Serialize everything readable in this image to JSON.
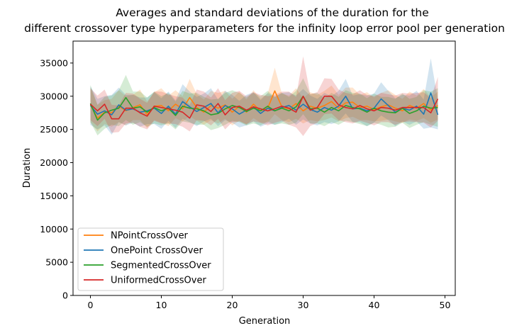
{
  "chart_data": {
    "type": "line",
    "title_line1": "Averages and standard deviations of the duration for the",
    "title_line2": "different crossover type hyperparameters for the infinity loop error pool per generation",
    "xlabel": "Generation",
    "ylabel": "Duration",
    "xlim": [
      -2.45,
      51.45
    ],
    "ylim": [
      0,
      38300
    ],
    "xticks": [
      0,
      10,
      20,
      30,
      40,
      50
    ],
    "yticks": [
      0,
      5000,
      10000,
      15000,
      20000,
      25000,
      30000,
      35000
    ],
    "grid": false,
    "legend_position": "lower-left",
    "x": [
      0,
      1,
      2,
      3,
      4,
      5,
      6,
      7,
      8,
      9,
      10,
      11,
      12,
      13,
      14,
      15,
      16,
      17,
      18,
      19,
      20,
      21,
      22,
      23,
      24,
      25,
      26,
      27,
      28,
      29,
      30,
      31,
      32,
      33,
      34,
      35,
      36,
      37,
      38,
      39,
      40,
      41,
      42,
      43,
      44,
      45,
      46,
      47,
      48,
      49
    ],
    "series": [
      {
        "name": "NPointCrossOver",
        "color": "#ff7f0e",
        "values": [
          28700,
          26700,
          27600,
          27500,
          28500,
          27800,
          28300,
          28700,
          27200,
          28500,
          28600,
          27800,
          28800,
          28100,
          29800,
          28300,
          27600,
          28600,
          28200,
          28700,
          27600,
          28500,
          27600,
          28800,
          27800,
          28200,
          30800,
          28400,
          28100,
          28900,
          27800,
          28500,
          28200,
          28600,
          29200,
          28200,
          29000,
          29100,
          28300,
          28500,
          28000,
          28400,
          28700,
          28200,
          27800,
          28600,
          28200,
          28900,
          27900,
          28600
        ],
        "std": [
          2600,
          2000,
          1800,
          2100,
          2400,
          2200,
          1900,
          2300,
          2000,
          2100,
          2600,
          2300,
          2100,
          1900,
          2800,
          2000,
          1900,
          2200,
          2300,
          2100,
          2000,
          2200,
          1900,
          2100,
          1800,
          2200,
          3500,
          2000,
          2000,
          2300,
          1900,
          2100,
          2000,
          2200,
          2400,
          2000,
          2300,
          2200,
          1900,
          2100,
          1800,
          2100,
          2200,
          2000,
          1800,
          2100,
          1900,
          2200,
          1900,
          2100
        ]
      },
      {
        "name": "OnePoint CrossOver",
        "color": "#1f77b4",
        "values": [
          28600,
          27300,
          27800,
          27200,
          28700,
          27900,
          28100,
          27600,
          27800,
          28200,
          27400,
          28500,
          27300,
          29200,
          28400,
          27700,
          28300,
          28900,
          27500,
          28600,
          28100,
          27300,
          27900,
          28400,
          27400,
          28200,
          27800,
          28300,
          28600,
          27900,
          28800,
          28000,
          27600,
          28300,
          27900,
          28500,
          30000,
          28100,
          28200,
          27800,
          28200,
          29600,
          28600,
          27600,
          28200,
          27900,
          28500,
          27300,
          30500,
          27200
        ],
        "std": [
          2900,
          2300,
          2200,
          3000,
          2600,
          2300,
          2100,
          2200,
          2000,
          2400,
          2300,
          2200,
          2100,
          2600,
          2300,
          2200,
          2100,
          2300,
          2000,
          2200,
          2100,
          2000,
          2300,
          2200,
          2000,
          2300,
          2100,
          2200,
          2000,
          2200,
          2300,
          2100,
          2000,
          2200,
          2100,
          2300,
          2600,
          2000,
          2100,
          2300,
          2200,
          2500,
          2200,
          2100,
          2000,
          2200,
          2300,
          2200,
          5200,
          2200
        ]
      },
      {
        "name": "SegmentedCrossOver",
        "color": "#2ca02c",
        "values": [
          28900,
          26400,
          27500,
          27900,
          28200,
          29800,
          28200,
          28400,
          27600,
          28300,
          27800,
          28200,
          27100,
          28500,
          28200,
          28100,
          27800,
          27200,
          27400,
          28100,
          28600,
          28300,
          27700,
          28200,
          27800,
          28500,
          27800,
          28200,
          27800,
          28400,
          30000,
          28100,
          28200,
          27600,
          28300,
          27800,
          28600,
          28300,
          28100,
          27600,
          28200,
          27800,
          27600,
          27500,
          28200,
          27400,
          27800,
          28500,
          28200,
          28300
        ],
        "std": [
          2800,
          2300,
          2400,
          2200,
          2700,
          3400,
          2500,
          2300,
          2200,
          2400,
          2200,
          2300,
          2100,
          2300,
          2200,
          2400,
          2100,
          2300,
          2200,
          2400,
          2300,
          2200,
          2100,
          2300,
          2200,
          2300,
          2100,
          2300,
          2100,
          2400,
          2700,
          2200,
          2300,
          2100,
          2200,
          2100,
          2300,
          2200,
          2300,
          2100,
          2200,
          2100,
          2300,
          2100,
          2200,
          2200,
          2100,
          2400,
          2500,
          2900
        ]
      },
      {
        "name": "UniformedCrossOver",
        "color": "#d62728",
        "values": [
          28800,
          27800,
          28800,
          26600,
          26600,
          28200,
          28200,
          27500,
          27000,
          28500,
          28300,
          28100,
          27900,
          27600,
          26700,
          28700,
          28500,
          27700,
          28900,
          27200,
          28300,
          28500,
          27900,
          28400,
          28100,
          27800,
          28100,
          28500,
          28200,
          27600,
          30000,
          27900,
          28300,
          30000,
          30000,
          28700,
          28300,
          28100,
          28600,
          28100,
          27800,
          28300,
          28200,
          27900,
          28300,
          28300,
          28300,
          28300,
          27500,
          29600
        ],
        "std": [
          2400,
          2300,
          2200,
          2100,
          2000,
          2300,
          2200,
          2100,
          2000,
          2200,
          2400,
          2200,
          2100,
          2200,
          2000,
          2300,
          2200,
          2100,
          2300,
          2200,
          2200,
          2300,
          2100,
          2200,
          2100,
          2200,
          2100,
          2200,
          2500,
          2300,
          6000,
          2400,
          2300,
          2700,
          2600,
          2300,
          2200,
          2200,
          2300,
          2100,
          2200,
          2200,
          2100,
          2200,
          2200,
          2100,
          2200,
          2300,
          2200,
          3300
        ]
      }
    ]
  }
}
